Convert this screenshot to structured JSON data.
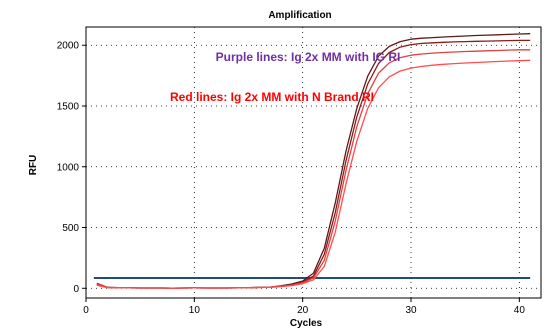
{
  "chart_data": {
    "type": "line",
    "title": "Amplification",
    "xlabel": "Cycles",
    "ylabel": "RFU",
    "xlim": [
      0,
      42
    ],
    "ylim": [
      -80,
      2150
    ],
    "xticks": [
      0,
      10,
      20,
      30,
      40
    ],
    "yticks": [
      0,
      500,
      1000,
      1500,
      2000
    ],
    "grid": true,
    "annotations": [
      {
        "text": "Purple lines: Ig 2x MM with IG RI",
        "color": "#7030a0"
      },
      {
        "text": "Red lines: Ig 2x MM with N Brand RI",
        "color": "#ff0000"
      }
    ],
    "threshold": {
      "y": 85,
      "color": "#1f4e79"
    },
    "x": [
      1,
      2,
      3,
      4,
      5,
      6,
      7,
      8,
      9,
      10,
      11,
      12,
      13,
      14,
      15,
      16,
      17,
      18,
      19,
      20,
      21,
      22,
      23,
      24,
      25,
      26,
      27,
      28,
      29,
      30,
      31,
      32,
      33,
      34,
      35,
      36,
      37,
      38,
      39,
      40,
      41
    ],
    "series": [
      {
        "color": "#5c1a1a",
        "values": [
          40,
          8,
          5,
          4,
          2,
          2,
          2,
          1,
          2,
          3,
          2,
          2,
          2,
          3,
          5,
          7,
          10,
          20,
          35,
          60,
          125,
          330,
          700,
          1130,
          1480,
          1745,
          1910,
          1990,
          2030,
          2050,
          2058,
          2063,
          2068,
          2072,
          2076,
          2080,
          2083,
          2086,
          2089,
          2092,
          2095
        ]
      },
      {
        "color": "#8b1a1a",
        "values": [
          30,
          6,
          4,
          3,
          2,
          2,
          2,
          1,
          2,
          3,
          2,
          2,
          2,
          3,
          5,
          7,
          10,
          18,
          30,
          52,
          100,
          280,
          620,
          1050,
          1410,
          1680,
          1850,
          1940,
          1985,
          2005,
          2015,
          2020,
          2024,
          2027,
          2030,
          2032,
          2034,
          2036,
          2038,
          2040,
          2040
        ]
      },
      {
        "color": "#e04040",
        "values": [
          35,
          7,
          5,
          4,
          2,
          2,
          2,
          1,
          2,
          3,
          2,
          2,
          2,
          3,
          5,
          6,
          9,
          16,
          26,
          45,
          85,
          230,
          550,
          970,
          1330,
          1600,
          1770,
          1855,
          1898,
          1918,
          1928,
          1935,
          1940,
          1944,
          1948,
          1951,
          1954,
          1957,
          1960,
          1962,
          1962
        ]
      },
      {
        "color": "#ff4d4d",
        "values": [
          25,
          5,
          4,
          3,
          2,
          2,
          2,
          1,
          2,
          3,
          2,
          2,
          2,
          3,
          4,
          6,
          8,
          14,
          22,
          38,
          70,
          180,
          460,
          860,
          1210,
          1480,
          1650,
          1740,
          1788,
          1812,
          1826,
          1836,
          1843,
          1849,
          1854,
          1858,
          1862,
          1866,
          1870,
          1873,
          1876
        ]
      }
    ]
  }
}
